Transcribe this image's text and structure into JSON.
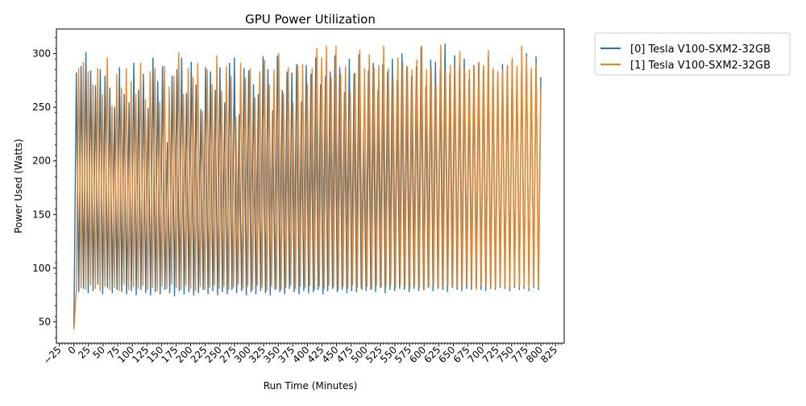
{
  "chart_data": {
    "type": "line",
    "title": "GPU Power Utilization",
    "xlabel": "Run Time (Minutes)",
    "ylabel": "Power Used (Watts)",
    "xlim": [
      -30,
      840
    ],
    "ylim": [
      30,
      323
    ],
    "x_ticks": [
      -25,
      0,
      25,
      50,
      75,
      100,
      125,
      150,
      175,
      200,
      225,
      250,
      275,
      300,
      325,
      350,
      375,
      400,
      425,
      450,
      475,
      500,
      525,
      550,
      575,
      600,
      625,
      650,
      675,
      700,
      725,
      750,
      775,
      800,
      825
    ],
    "y_ticks": [
      50,
      100,
      150,
      200,
      250,
      300
    ],
    "grid": false,
    "legend_position": "outside-top-right",
    "sample_interval_minutes": 1,
    "series": [
      {
        "name": "[0] Tesla V100-SXM2-32GB",
        "color": "#1f77b4",
        "x_start": 0,
        "x_end": 800,
        "range": [
          43,
          309
        ],
        "y_samples": [
          43,
          282,
          78,
          288,
          81,
          301,
          77,
          284,
          79,
          270,
          85,
          285,
          76,
          279,
          82,
          268,
          77,
          250,
          80,
          287,
          78,
          262,
          76,
          254,
          79,
          291,
          75,
          266,
          80,
          281,
          77,
          249,
          75,
          296,
          78,
          274,
          76,
          288,
          80,
          217,
          77,
          279,
          74,
          285,
          79,
          296,
          76,
          263,
          78,
          292,
          75,
          271,
          77,
          248,
          80,
          287,
          76,
          283,
          79,
          266,
          75,
          287,
          78,
          254,
          76,
          291,
          80,
          296,
          77,
          243,
          79,
          286,
          75,
          284,
          78,
          271,
          76,
          262,
          79,
          297,
          77,
          285,
          75,
          247,
          80,
          298,
          78,
          266,
          76,
          283,
          81,
          282,
          78,
          290,
          76,
          255,
          79,
          289,
          77,
          281,
          78,
          296,
          80,
          271,
          76,
          279,
          79,
          283,
          81,
          298,
          78,
          287,
          80,
          264,
          77,
          295,
          79,
          281,
          78,
          299,
          81,
          228,
          79,
          284,
          80,
          291,
          78,
          266,
          82,
          290,
          77,
          283,
          80,
          295,
          79,
          275,
          81,
          300,
          80,
          287,
          78,
          279,
          81,
          288,
          79,
          306,
          80,
          269,
          82,
          294,
          79,
          292,
          81,
          286,
          80,
          309,
          78,
          281,
          82,
          298,
          80,
          288,
          79,
          295,
          81,
          276,
          80,
          289,
          82,
          291,
          80,
          285,
          79,
          296,
          81,
          284,
          80,
          283,
          82,
          290,
          81,
          288,
          79,
          294,
          82,
          284,
          80,
          295,
          81,
          300,
          79,
          283,
          82,
          297,
          80,
          278
        ]
      },
      {
        "name": "[1] Tesla V100-SXM2-32GB",
        "color": "#ff7f0e",
        "x_start": 0,
        "x_end": 800,
        "range": [
          43,
          309
        ],
        "y_samples": [
          43,
          79,
          286,
          82,
          292,
          80,
          283,
          84,
          271,
          81,
          286,
          79,
          262,
          83,
          296,
          80,
          251,
          82,
          281,
          79,
          268,
          85,
          286,
          80,
          274,
          83,
          262,
          81,
          291,
          84,
          257,
          80,
          283,
          82,
          286,
          79,
          255,
          83,
          288,
          81,
          269,
          85,
          279,
          82,
          301,
          80,
          262,
          84,
          286,
          81,
          278,
          79,
          291,
          83,
          246,
          80,
          285,
          82,
          271,
          84,
          298,
          81,
          265,
          83,
          288,
          80,
          279,
          82,
          241,
          85,
          291,
          81,
          277,
          83,
          286,
          80,
          259,
          84,
          283,
          82,
          294,
          79,
          271,
          83,
          285,
          81,
          300,
          80,
          263,
          82,
          287,
          84,
          254,
          81,
          289,
          83,
          290,
          82,
          272,
          84,
          286,
          80,
          305,
          83,
          296,
          81,
          307,
          84,
          278,
          82,
          307,
          80,
          281,
          83,
          288,
          81,
          264,
          84,
          282,
          82,
          303,
          80,
          286,
          83,
          299,
          81,
          287,
          84,
          289,
          82,
          307,
          83,
          286,
          85,
          276,
          82,
          296,
          84,
          292,
          83,
          288,
          81,
          285,
          84,
          294,
          82,
          307,
          80,
          285,
          83,
          287,
          84,
          271,
          82,
          308,
          81,
          283,
          84,
          289,
          82,
          287,
          83,
          302,
          81,
          286,
          84,
          285,
          82,
          288,
          80,
          292,
          84,
          289,
          83,
          303,
          81,
          286,
          82,
          282,
          84,
          285,
          83,
          289,
          81,
          296,
          84,
          288,
          82,
          307,
          83,
          297,
          81,
          286,
          84,
          291,
          82,
          268
        ]
      }
    ]
  }
}
